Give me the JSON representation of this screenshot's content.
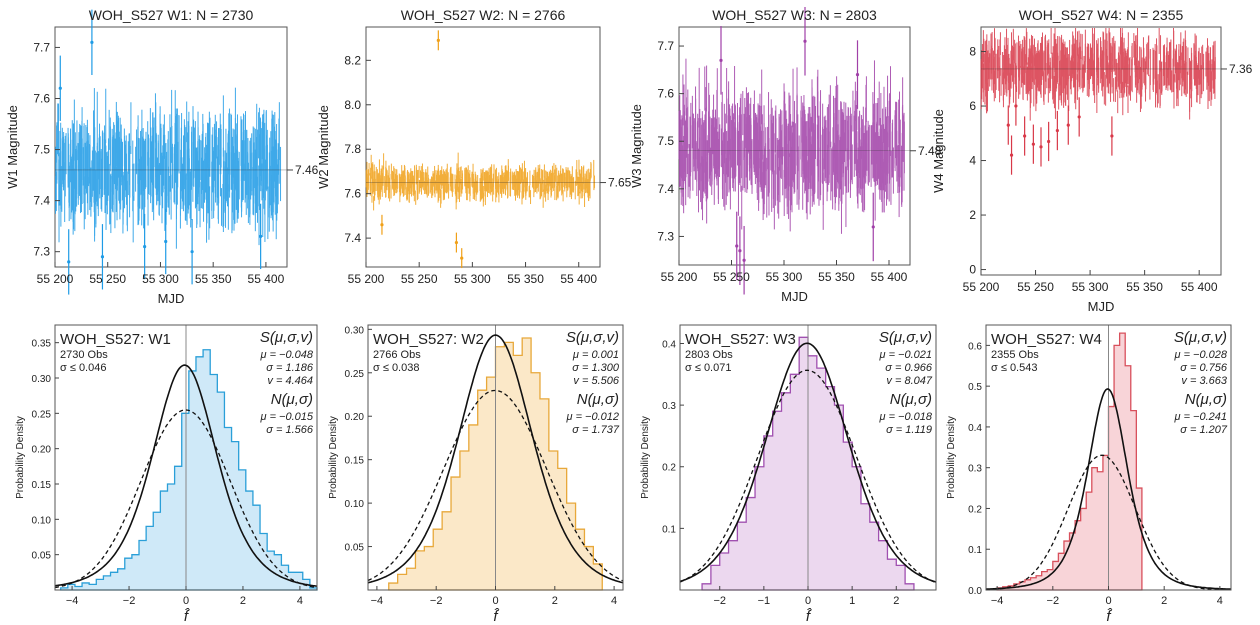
{
  "chart_data": [
    {
      "type": "scatter",
      "title": "WOH_S527  W1:  N = 2730",
      "xlabel": "MJD",
      "ylabel": "W1 Magnitude",
      "xlim": [
        55200,
        55420
      ],
      "ylim": [
        7.27,
        7.74
      ],
      "xticks": [
        55200,
        55250,
        55300,
        55350,
        55400
      ],
      "yticks": [
        7.3,
        7.4,
        7.5,
        7.6,
        7.7
      ],
      "yticklabels": [
        "7.3",
        "7.4",
        "7.5",
        "7.6",
        "7.7"
      ],
      "mean_label": "7.46",
      "mean_value": 7.46,
      "spread": 0.04,
      "color": "#1e9be6",
      "series": [
        {
          "x": [
            55235,
            55285,
            55213,
            55245,
            55305,
            55330,
            55395,
            55205
          ],
          "y": [
            7.71,
            7.31,
            7.28,
            7.29,
            7.32,
            7.3,
            7.33,
            7.62
          ]
        }
      ]
    },
    {
      "type": "scatter",
      "title": "WOH_S527  W2:  N = 2766",
      "xlabel": "",
      "ylabel": "W2 Magnitude",
      "xlim": [
        55200,
        55420
      ],
      "ylim": [
        7.27,
        8.35
      ],
      "xticks": [
        55200,
        55250,
        55300,
        55350,
        55400
      ],
      "yticks": [
        7.4,
        7.6,
        7.8,
        8.0,
        8.2
      ],
      "yticklabels": [
        "7.4",
        "7.6",
        "7.8",
        "8.0",
        "8.2"
      ],
      "mean_label": "7.65",
      "mean_value": 7.65,
      "spread": 0.028,
      "color": "#f0a018",
      "series": [
        {
          "x": [
            55268,
            55285,
            55290,
            55215
          ],
          "y": [
            8.29,
            7.38,
            7.31,
            7.46
          ]
        }
      ]
    },
    {
      "type": "scatter",
      "title": "WOH_S527  W3:  N = 2803",
      "xlabel": "MJD",
      "ylabel": "W3 Magnitude",
      "xlim": [
        55200,
        55420
      ],
      "ylim": [
        7.24,
        7.74
      ],
      "xticks": [
        55200,
        55250,
        55300,
        55350,
        55400
      ],
      "yticks": [
        7.3,
        7.4,
        7.5,
        7.6,
        7.7
      ],
      "yticklabels": [
        "7.3",
        "7.4",
        "7.5",
        "7.6",
        "7.7"
      ],
      "mean_label": "7.48",
      "mean_value": 7.48,
      "spread": 0.045,
      "color": "#a040a8",
      "series": [
        {
          "x": [
            55258,
            55262,
            55370,
            55385,
            55320,
            55240,
            55255
          ],
          "y": [
            7.27,
            7.25,
            7.64,
            7.32,
            7.71,
            7.67,
            7.28
          ]
        }
      ]
    },
    {
      "type": "scatter",
      "title": "WOH_S527  W4:  N = 2355",
      "xlabel": "MJD",
      "ylabel": "W4 Magnitude",
      "xlim": [
        55200,
        55420
      ],
      "ylim": [
        -0.2,
        8.9
      ],
      "xticks": [
        55200,
        55250,
        55300,
        55350,
        55400
      ],
      "yticks": [
        0,
        2,
        4,
        6,
        8
      ],
      "yticklabels": [
        "0",
        "2",
        "4",
        "6",
        "8"
      ],
      "mean_label": "7.36",
      "mean_value": 7.36,
      "spread": 0.45,
      "color": "#d83848",
      "series": [
        {
          "x": [
            55225,
            55228,
            55240,
            55248,
            55255,
            55262,
            55270,
            55280,
            55290,
            55320,
            55232
          ],
          "y": [
            5.3,
            4.2,
            4.9,
            4.6,
            4.5,
            4.7,
            5.1,
            5.3,
            5.6,
            4.9,
            6.0
          ]
        }
      ]
    },
    {
      "type": "area",
      "title": "WOH_S527: W1",
      "subtitle": "2730 Obs",
      "sigma_note": "σ ≤ 0.046",
      "xlabel": "f̂",
      "ylabel": "Probability Density",
      "xlim": [
        -4.6,
        4.6
      ],
      "ylim": [
        0,
        0.375
      ],
      "xticks": [
        -4,
        -2,
        0,
        2,
        4
      ],
      "yticks": [
        0.05,
        0.1,
        0.15,
        0.2,
        0.25,
        0.3,
        0.35
      ],
      "yticklabels": [
        "0.05",
        "0.10",
        "0.15",
        "0.20",
        "0.25",
        "0.30",
        "0.35"
      ],
      "student_label": "S(μ,σ,v)",
      "student": [
        "μ = −0.048",
        "σ = 1.186",
        "v = 4.464"
      ],
      "normal_label": "N(μ,σ)",
      "normal": [
        "μ = −0.015",
        "σ = 1.566"
      ],
      "fit": {
        "t_mu": -0.048,
        "t_sigma": 1.186,
        "t_nu": 4.464,
        "n_mu": -0.015,
        "n_sigma": 1.566
      },
      "color": "#2a9fd8",
      "fill": "#cfe9f8",
      "hist_x": [
        -4.4,
        4.4,
        0.25
      ],
      "hist_y": [
        0.003,
        0.008,
        0.005,
        0.01,
        0.008,
        0.015,
        0.02,
        0.025,
        0.03,
        0.045,
        0.05,
        0.07,
        0.09,
        0.11,
        0.14,
        0.15,
        0.175,
        0.25,
        0.31,
        0.33,
        0.34,
        0.305,
        0.28,
        0.23,
        0.21,
        0.17,
        0.14,
        0.12,
        0.08,
        0.055,
        0.05,
        0.035,
        0.025,
        0.025,
        0.015,
        0.003
      ]
    },
    {
      "type": "area",
      "title": "WOH_S527: W2",
      "subtitle": "2766 Obs",
      "sigma_note": "σ ≤ 0.038",
      "xlabel": "f̂",
      "ylabel": "Probability Density",
      "xlim": [
        -4.3,
        4.3
      ],
      "ylim": [
        0,
        0.305
      ],
      "xticks": [
        -4,
        -2,
        0,
        2,
        4
      ],
      "yticks": [
        0.05,
        0.1,
        0.15,
        0.2,
        0.25,
        0.3
      ],
      "yticklabels": [
        "0.05",
        "0.10",
        "0.15",
        "0.20",
        "0.25",
        "0.30"
      ],
      "student_label": "S(μ,σ,v)",
      "student": [
        "μ = 0.001",
        "σ = 1.300",
        "v = 5.506"
      ],
      "normal_label": "N(μ,σ)",
      "normal": [
        "μ = −0.012",
        "σ = 1.737"
      ],
      "fit": {
        "t_mu": 0.001,
        "t_sigma": 1.3,
        "t_nu": 5.506,
        "n_mu": -0.012,
        "n_sigma": 1.737
      },
      "color": "#e8a83a",
      "fill": "#fbe8c8",
      "hist_x": [
        -3.6,
        3.6,
        0.3
      ],
      "hist_y": [
        0.008,
        0.018,
        0.025,
        0.045,
        0.05,
        0.07,
        0.09,
        0.13,
        0.16,
        0.19,
        0.23,
        0.245,
        0.28,
        0.285,
        0.27,
        0.29,
        0.25,
        0.22,
        0.16,
        0.14,
        0.1,
        0.07,
        0.05,
        0.03
      ]
    },
    {
      "type": "area",
      "title": "WOH_S527: W3",
      "subtitle": "2803 Obs",
      "sigma_note": "σ ≤ 0.071",
      "xlabel": "f̂",
      "ylabel": "Probability Density",
      "xlim": [
        -2.9,
        2.9
      ],
      "ylim": [
        0,
        0.43
      ],
      "xticks": [
        -2,
        -1,
        0,
        1,
        2
      ],
      "yticks": [
        0.1,
        0.2,
        0.3,
        0.4
      ],
      "yticklabels": [
        "0.1",
        "0.2",
        "0.3",
        "0.4"
      ],
      "student_label": "S(μ,σ,v)",
      "student": [
        "μ = −0.021",
        "σ = 0.966",
        "v = 8.047"
      ],
      "normal_label": "N(μ,σ)",
      "normal": [
        "μ = −0.018",
        "σ = 1.119"
      ],
      "fit": {
        "t_mu": -0.021,
        "t_sigma": 0.966,
        "t_nu": 8.047,
        "n_mu": -0.018,
        "n_sigma": 1.119
      },
      "color": "#a050b0",
      "fill": "#ecd8ef",
      "hist_x": [
        -2.4,
        2.4,
        0.2
      ],
      "hist_y": [
        0.01,
        0.04,
        0.06,
        0.08,
        0.11,
        0.15,
        0.2,
        0.25,
        0.29,
        0.32,
        0.35,
        0.41,
        0.38,
        0.36,
        0.33,
        0.3,
        0.24,
        0.2,
        0.14,
        0.11,
        0.08,
        0.05,
        0.04,
        0.01
      ]
    },
    {
      "type": "area",
      "title": "WOH_S527: W4",
      "subtitle": "2355 Obs",
      "sigma_note": "σ ≤ 0.543",
      "xlabel": "f̂",
      "ylabel": "Probability Density",
      "xlim": [
        -4.4,
        4.4
      ],
      "ylim": [
        0,
        0.65
      ],
      "xticks": [
        -4,
        -2,
        0,
        2,
        4
      ],
      "yticks": [
        0.0,
        0.1,
        0.2,
        0.3,
        0.4,
        0.5,
        0.6
      ],
      "yticklabels": [
        "0.0",
        "0.1",
        "0.2",
        "0.3",
        "0.4",
        "0.5",
        "0.6"
      ],
      "student_label": "S(μ,σ,v)",
      "student": [
        "μ = −0.028",
        "σ = 0.756",
        "v = 3.663"
      ],
      "normal_label": "N(μ,σ)",
      "normal": [
        "μ = −0.241",
        "σ = 1.207"
      ],
      "fit": {
        "t_mu": -0.028,
        "t_sigma": 0.756,
        "t_nu": 3.663,
        "n_mu": -0.241,
        "n_sigma": 1.207
      },
      "color": "#d8505c",
      "fill": "#f8d4d8",
      "hist_x": [
        -4.0,
        1.2,
        0.2
      ],
      "hist_y": [
        0.005,
        0.008,
        0.01,
        0.015,
        0.02,
        0.025,
        0.03,
        0.035,
        0.045,
        0.05,
        0.07,
        0.09,
        0.12,
        0.14,
        0.17,
        0.2,
        0.24,
        0.3,
        0.29,
        0.33,
        0.45,
        0.6,
        0.63,
        0.55,
        0.44,
        0.25
      ]
    }
  ]
}
